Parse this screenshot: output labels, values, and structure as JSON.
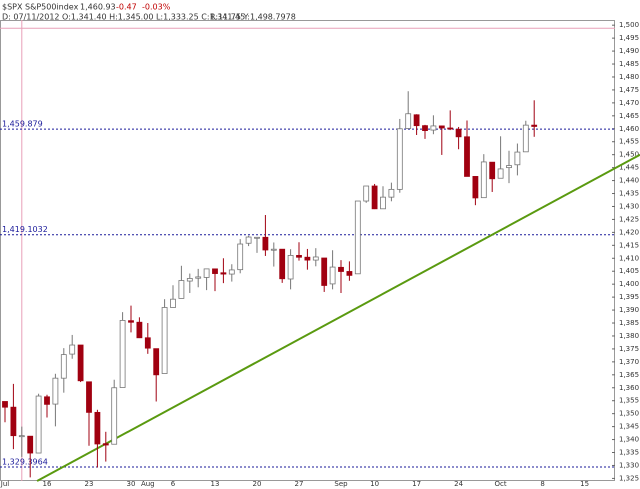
{
  "header": {
    "symbol": "$SPX S&P500index",
    "last": "1,460.93",
    "change": "-0.47",
    "change_pct": "-0.03%",
    "cursor": "D: 07/11/2012 O:1,341.40 H:1,345.00 L:1,333.25 C:1,341.45",
    "readout": "R:11.75 Y:1,498.7978"
  },
  "chart_data": {
    "type": "candlestick",
    "categories": [
      "Jul",
      null,
      null,
      null,
      null,
      "16",
      null,
      null,
      null,
      null,
      "23",
      null,
      null,
      null,
      null,
      "30",
      null,
      "Aug",
      null,
      null,
      "6",
      null,
      null,
      null,
      null,
      "13",
      null,
      null,
      null,
      null,
      "20",
      null,
      null,
      null,
      null,
      "27",
      null,
      null,
      null,
      null,
      "Sep",
      null,
      null,
      null,
      "10",
      null,
      null,
      null,
      null,
      "17",
      null,
      null,
      null,
      null,
      "24",
      null,
      null,
      null,
      null,
      "Oct",
      null,
      null,
      null,
      null,
      "8",
      null,
      null,
      null,
      null,
      "15"
    ],
    "open": [
      1354.7,
      1352.5,
      1341.4,
      1341.3,
      1334.8,
      1356.5,
      1353.7,
      1363.7,
      1373.0,
      1376.5,
      1362.3,
      1350.5,
      1338.4,
      1338.2,
      1360.1,
      1385.9,
      1385.3,
      1379.3,
      1375.1,
      1365.5,
      1391.0,
      1394.5,
      1401.2,
      1402.3,
      1402.6,
      1405.9,
      1404.4,
      1403.9,
      1405.6,
      1415.8,
      1417.9,
      1418.1,
      1413.1,
      1413.5,
      1402.0,
      1411.1,
      1410.4,
      1409.3,
      1410.1,
      1400.1,
      1406.5,
      1404.9,
      1404.0,
      1432.1,
      1437.9,
      1429.1,
      1433.6,
      1436.6,
      1460.1,
      1465.4,
      1461.2,
      1459.5,
      1461.1,
      1460.3,
      1459.8,
      1456.9,
      1441.6,
      1433.4,
      1447.1,
      1440.9,
      1445.0,
      1446.1,
      1451.1,
      1461.4,
      null,
      null,
      null,
      null,
      null,
      null
    ],
    "high": [
      1354.7,
      1361.5,
      1345.0,
      1341.3,
      1357.7,
      1357.3,
      1365.4,
      1375.3,
      1380.4,
      1376.5,
      1362.3,
      1351.5,
      1343.0,
      1363.1,
      1389.2,
      1391.7,
      1387.2,
      1385.0,
      1375.1,
      1394.2,
      1399.6,
      1407.1,
      1404.1,
      1405.9,
      1406.0,
      1405.9,
      1410.0,
      1407.7,
      1417.4,
      1418.7,
      1418.1,
      1426.7,
      1416.1,
      1413.5,
      1413.5,
      1416.2,
      1413.6,
      1413.9,
      1410.1,
      1413.1,
      1409.3,
      1408.8,
      1432.1,
      1437.9,
      1438.7,
      1437.8,
      1439.2,
      1463.8,
      1474.5,
      1465.6,
      1461.5,
      1465.2,
      1461.2,
      1467.1,
      1460.7,
      1463.2,
      1441.6,
      1450.2,
      1447.1,
      1457.1,
      1451.5,
      1454.3,
      1463.1,
      1471.0,
      null,
      null,
      null,
      null,
      null,
      null
    ],
    "low": [
      1346.7,
      1336.3,
      1333.3,
      1325.4,
      1334.8,
      1348.5,
      1345.1,
      1358.1,
      1371.2,
      1362.2,
      1337.6,
      1329.2,
      1331.5,
      1338.2,
      1360.1,
      1381.4,
      1379.2,
      1373.1,
      1354.7,
      1365.5,
      1391.0,
      1394.5,
      1396.6,
      1398.8,
      1397.7,
      1397.3,
      1400.4,
      1401.0,
      1404.2,
      1414.7,
      1412.1,
      1410.9,
      1406.8,
      1400.5,
      1398.0,
      1409.1,
      1405.6,
      1406.9,
      1397.0,
      1398.0,
      1396.6,
      1401.3,
      1404.0,
      1431.4,
      1429.0,
      1429.1,
      1432.0,
      1435.3,
      1460.1,
      1457.6,
      1456.1,
      1457.9,
      1449.9,
      1459.5,
      1452.1,
      1441.6,
      1430.5,
      1433.4,
      1435.6,
      1440.9,
      1439.0,
      1442.0,
      1451.1,
      1456.9,
      null,
      null,
      null,
      null,
      null,
      null
    ],
    "close": [
      1352.5,
      1341.5,
      1341.5,
      1334.8,
      1356.8,
      1353.6,
      1363.7,
      1372.8,
      1376.5,
      1362.7,
      1350.5,
      1338.3,
      1337.9,
      1360.0,
      1386.0,
      1385.3,
      1379.3,
      1375.3,
      1365.0,
      1391.0,
      1394.2,
      1401.4,
      1402.2,
      1402.8,
      1405.9,
      1404.1,
      1403.9,
      1405.5,
      1415.5,
      1418.2,
      1418.1,
      1413.2,
      1413.5,
      1402.1,
      1411.1,
      1410.4,
      1409.3,
      1410.5,
      1399.5,
      1406.6,
      1404.9,
      1403.4,
      1432.1,
      1437.9,
      1429.1,
      1433.6,
      1436.6,
      1460.0,
      1465.8,
      1461.2,
      1459.3,
      1461.1,
      1460.3,
      1460.2,
      1456.9,
      1441.6,
      1433.3,
      1447.2,
      1440.7,
      1444.5,
      1445.8,
      1451.0,
      1461.4,
      1460.9,
      null,
      null,
      null,
      null,
      null,
      null
    ],
    "up_color": "#ffffff",
    "down_color": "#a00010",
    "outline_color": "#777777",
    "ylim": [
      1324,
      1502
    ],
    "yticks": [
      {
        "value": 1325,
        "label": "1,325"
      },
      {
        "value": 1330,
        "label": "1,330"
      },
      {
        "value": 1335,
        "label": "1,335"
      },
      {
        "value": 1340,
        "label": "1,340"
      },
      {
        "value": 1345,
        "label": "1,345"
      },
      {
        "value": 1350,
        "label": "1,350"
      },
      {
        "value": 1355,
        "label": "1,355"
      },
      {
        "value": 1360,
        "label": "1,360"
      },
      {
        "value": 1365,
        "label": "1,365"
      },
      {
        "value": 1370,
        "label": "1,370"
      },
      {
        "value": 1375,
        "label": "1,375"
      },
      {
        "value": 1380,
        "label": "1,380"
      },
      {
        "value": 1385,
        "label": "1,385"
      },
      {
        "value": 1390,
        "label": "1,390"
      },
      {
        "value": 1395,
        "label": "1,395"
      },
      {
        "value": 1400,
        "label": "1,400"
      },
      {
        "value": 1405,
        "label": "1,405"
      },
      {
        "value": 1410,
        "label": "1,410"
      },
      {
        "value": 1415,
        "label": "1,415"
      },
      {
        "value": 1420,
        "label": "1,420"
      },
      {
        "value": 1425,
        "label": "1,425"
      },
      {
        "value": 1430,
        "label": "1,430"
      },
      {
        "value": 1435,
        "label": "1,435"
      },
      {
        "value": 1440,
        "label": "1,440"
      },
      {
        "value": 1445,
        "label": "1,445"
      },
      {
        "value": 1450,
        "label": "1,450"
      },
      {
        "value": 1455,
        "label": "1,455"
      },
      {
        "value": 1460,
        "label": "1,460"
      },
      {
        "value": 1465,
        "label": "1,465"
      },
      {
        "value": 1470,
        "label": "1,470"
      },
      {
        "value": 1475,
        "label": "1,475"
      },
      {
        "value": 1480,
        "label": "1,480"
      },
      {
        "value": 1485,
        "label": "1,485"
      },
      {
        "value": 1490,
        "label": "1,490"
      },
      {
        "value": 1495,
        "label": "1,495"
      },
      {
        "value": 1500,
        "label": "1,500"
      }
    ],
    "levels": [
      {
        "value": 1459.879,
        "label": "1,459.879"
      },
      {
        "value": 1419.1032,
        "label": "1,419.1032"
      },
      {
        "value": 1329.3964,
        "label": "1,329.3964"
      }
    ],
    "level_color": "#1a1a9a",
    "cursor_level": 1498.7978,
    "cursor_color": "#e8a0b8",
    "trendline": {
      "values": [
        1317.3,
        1438.4
      ],
      "color": "#5a9a10"
    }
  }
}
